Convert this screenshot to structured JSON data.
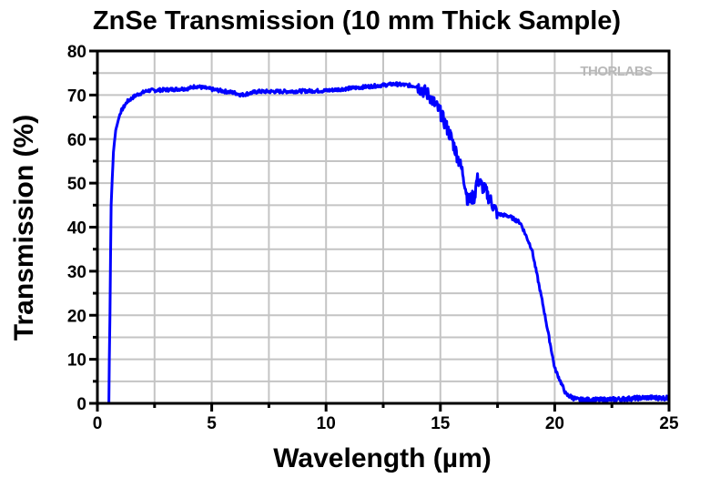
{
  "chart_data": {
    "type": "line",
    "title": "ZnSe Transmission (10 mm Thick Sample)",
    "xlabel": "Wavelength (µm)",
    "ylabel": "Transmission (%)",
    "xlim": [
      0,
      25
    ],
    "ylim": [
      0,
      80
    ],
    "xticks": [
      0,
      5,
      10,
      15,
      20,
      25
    ],
    "yticks": [
      0,
      10,
      20,
      30,
      40,
      50,
      60,
      70,
      80
    ],
    "grid": true,
    "watermark": "THORLABS",
    "series": [
      {
        "name": "ZnSe",
        "color": "#0000ff",
        "x": [
          0.5,
          0.52,
          0.55,
          0.6,
          0.7,
          0.8,
          1.0,
          1.3,
          1.7,
          2.2,
          3.0,
          4.0,
          4.3,
          5.0,
          6.0,
          6.3,
          7.0,
          8.0,
          10.0,
          11.0,
          12.0,
          13.0,
          14.0,
          14.5,
          15.0,
          15.5,
          16.0,
          16.2,
          16.5,
          16.6,
          17.0,
          17.5,
          18.0,
          18.5,
          19.0,
          19.5,
          20.0,
          20.5,
          21.0,
          22.0,
          23.0,
          24.0,
          25.0
        ],
        "y": [
          0,
          10,
          20,
          45,
          57,
          62,
          66,
          68.5,
          70,
          71,
          71.2,
          71.5,
          72,
          71.3,
          70.5,
          70,
          70.8,
          70.8,
          71,
          71.5,
          72,
          72.5,
          72,
          70,
          66,
          60,
          52,
          46,
          47,
          51,
          48,
          43,
          42.5,
          41,
          35,
          22,
          8,
          2,
          0.8,
          0.8,
          1,
          1.3,
          1.2
        ]
      }
    ]
  }
}
